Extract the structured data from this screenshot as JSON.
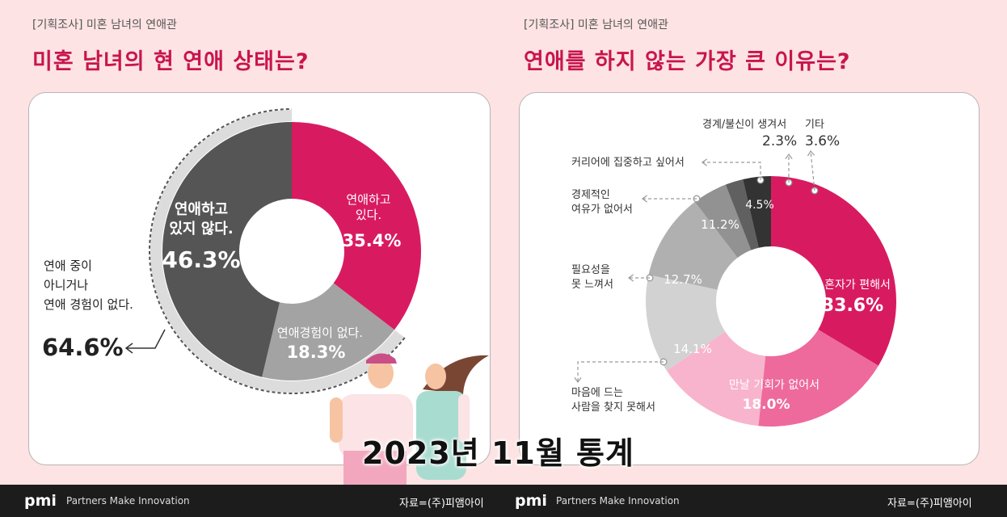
{
  "left_panel": {
    "kicker": "[기획조사] 미혼 남녀의 연애관",
    "headline": "미혼 남녀의 현 연애 상태는?"
  },
  "right_panel": {
    "kicker": "[기획조사] 미혼 남녀의 연애관",
    "headline": "연애를 하지 않는 가장 큰 이유는?"
  },
  "chart_data": [
    {
      "type": "pie",
      "title": "미혼 남녀의 현 연애 상태는?",
      "slices": [
        {
          "label": "연애하고 있다.",
          "value": 35.4,
          "color": "#d81b60"
        },
        {
          "label": "연애경험이 없다.",
          "value": 18.3,
          "color": "#a3a3a3"
        },
        {
          "label": "연애하고 있지 않다.",
          "value": 46.3,
          "color": "#555555"
        }
      ],
      "annotation": {
        "label": "연애 중이 아니거나 연애 경험이 없다.",
        "value": 64.6
      }
    },
    {
      "type": "pie",
      "title": "연애를 하지 않는 가장 큰 이유는?",
      "slices": [
        {
          "label": "혼자가 편해서",
          "value": 33.6,
          "color": "#d81b60"
        },
        {
          "label": "만날 기회가 없어서",
          "value": 18.0,
          "color": "#ee6a9c"
        },
        {
          "label": "마음에 드는 사람을 찾지 못해서",
          "value": 14.1,
          "color": "#f8b4cc"
        },
        {
          "label": "필요성을 못 느껴서",
          "value": 12.7,
          "color": "#d2d2d2"
        },
        {
          "label": "경제적인 여유가 없어서",
          "value": 11.2,
          "color": "#b0b0b0"
        },
        {
          "label": "커리어에 집중하고 싶어서",
          "value": 4.5,
          "color": "#929292"
        },
        {
          "label": "경계/불신이 생겨서",
          "value": 2.3,
          "color": "#606060"
        },
        {
          "label": "기타",
          "value": 3.6,
          "color": "#333333"
        }
      ]
    }
  ],
  "texts": {
    "l_in_label": "연애하고\n있다.",
    "l_in_value": "35.4%",
    "l_exp_label": "연애경험이 없다.",
    "l_exp_value": "18.3%",
    "l_not_label": "연애하고\n있지 않다.",
    "l_not_value": "46.3%",
    "l_side_label": "연애 중이\n아니거나\n연애 경험이 없다.",
    "l_side_value": "64.6%",
    "r_alone_label": "혼자가 편해서",
    "r_alone_value": "33.6%",
    "r_meet_label": "만날 기회가 없어서",
    "r_meet_value": "18.0%",
    "r_like_value": "14.1%",
    "r_like_label": "마음에 드는\n사람을 찾지 못해서",
    "r_need_value": "12.7%",
    "r_need_label": "필요성을\n못 느껴서",
    "r_money_value": "11.2%",
    "r_money_label": "경제적인\n여유가 없어서",
    "r_career_value": "4.5%",
    "r_career_label": "커리어에 집중하고 싶어서",
    "r_trust_label": "경계/불신이 생겨서",
    "r_trust_value": "2.3%",
    "r_etc_label": "기타",
    "r_etc_value": "3.6%"
  },
  "footer": {
    "logo": "pmi",
    "tagline": "Partners Make Innovation",
    "source": "자료=(주)피앰아이"
  },
  "caption": "2023년 11월 통계"
}
